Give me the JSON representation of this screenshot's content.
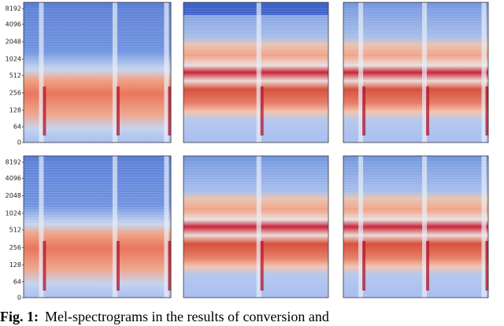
{
  "figure": {
    "rows": [
      {
        "yticks": [
          "8192",
          "4096",
          "2048",
          "1024",
          "512",
          "256",
          "128",
          "64",
          "0"
        ]
      },
      {
        "yticks": [
          "8192",
          "4096",
          "2048",
          "1024",
          "512",
          "256",
          "128",
          "64",
          "0"
        ]
      }
    ]
  },
  "caption": {
    "label": "Fig. 1:",
    "text": "Mel-spectrograms in the results of conversion and"
  }
}
